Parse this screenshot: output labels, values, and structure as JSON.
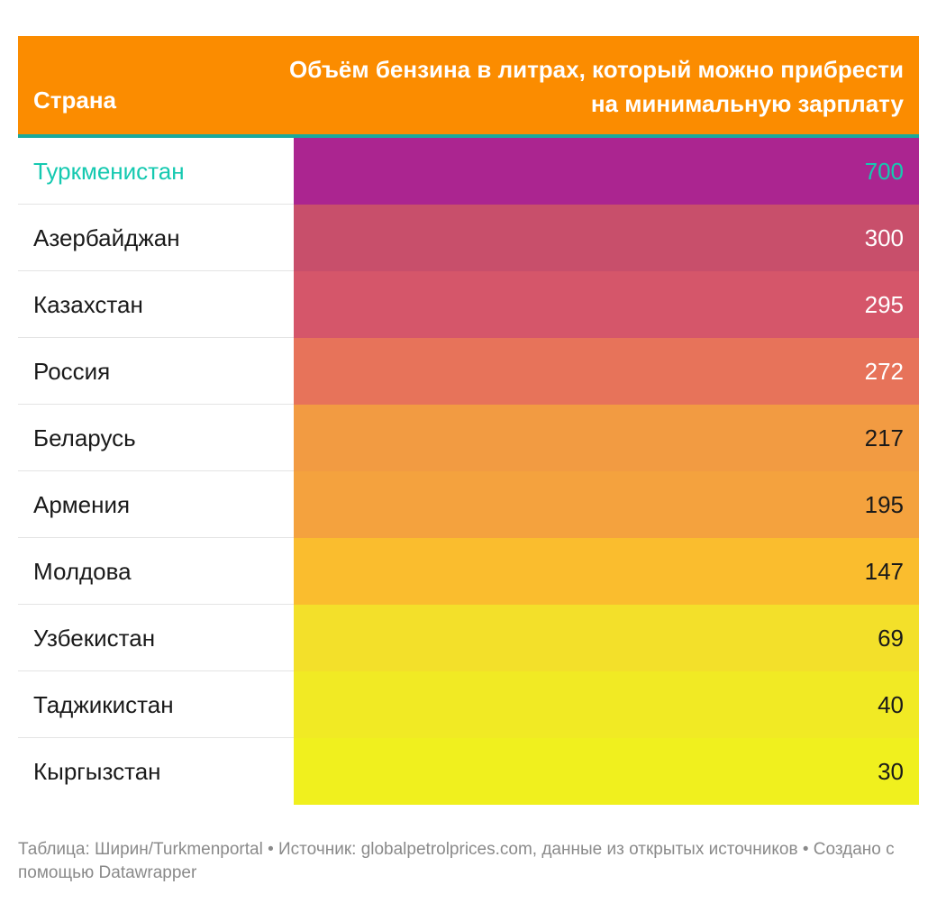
{
  "chart_data": {
    "type": "table",
    "columns": [
      "Страна",
      "Объём бензина в литрах, который можно прибрести на минимальную зарплату"
    ],
    "rows": [
      {
        "country": "Туркменистан",
        "value": 700,
        "label": "700",
        "bg": "#ab2590",
        "country_color": "#15c9b0",
        "value_color": "#15c9b0"
      },
      {
        "country": "Азербайджан",
        "value": 300,
        "label": "300",
        "bg": "#c84f6b",
        "country_color": "#1a1a1a",
        "value_color": "#ffffff"
      },
      {
        "country": "Казахстан",
        "value": 295,
        "label": "295",
        "bg": "#d5566a",
        "country_color": "#1a1a1a",
        "value_color": "#ffffff"
      },
      {
        "country": "Россия",
        "value": 272,
        "label": "272",
        "bg": "#e7735a",
        "country_color": "#1a1a1a",
        "value_color": "#ffffff"
      },
      {
        "country": "Беларусь",
        "value": 217,
        "label": "217",
        "bg": "#f29b42",
        "country_color": "#1a1a1a",
        "value_color": "#1a1a1a"
      },
      {
        "country": "Армения",
        "value": 195,
        "label": "195",
        "bg": "#f4a23e",
        "country_color": "#1a1a1a",
        "value_color": "#1a1a1a"
      },
      {
        "country": "Молдова",
        "value": 147,
        "label": "147",
        "bg": "#fabd2e",
        "country_color": "#1a1a1a",
        "value_color": "#1a1a1a"
      },
      {
        "country": "Узбекистан",
        "value": 69,
        "label": "69",
        "bg": "#f3e02a",
        "country_color": "#1a1a1a",
        "value_color": "#1a1a1a"
      },
      {
        "country": "Таджикистан",
        "value": 40,
        "label": "40",
        "bg": "#f1ea24",
        "country_color": "#1a1a1a",
        "value_color": "#1a1a1a"
      },
      {
        "country": "Кыргызстан",
        "value": 30,
        "label": "30",
        "bg": "#f0f01e",
        "country_color": "#1a1a1a",
        "value_color": "#1a1a1a"
      }
    ]
  },
  "header": {
    "country": "Страна",
    "value": "Объём бензина в литрах, который можно прибрести на минимальную зарплату"
  },
  "footer": {
    "text": "Таблица: Ширин/Turkmenportal • Источник: globalpetrolprices.com, данные из открытых источников • Создано с помощью Datawrapper"
  },
  "colors": {
    "header_bg": "#fb8c00",
    "header_rule": "#1aa99a",
    "footer_text": "#8a8a8a"
  }
}
